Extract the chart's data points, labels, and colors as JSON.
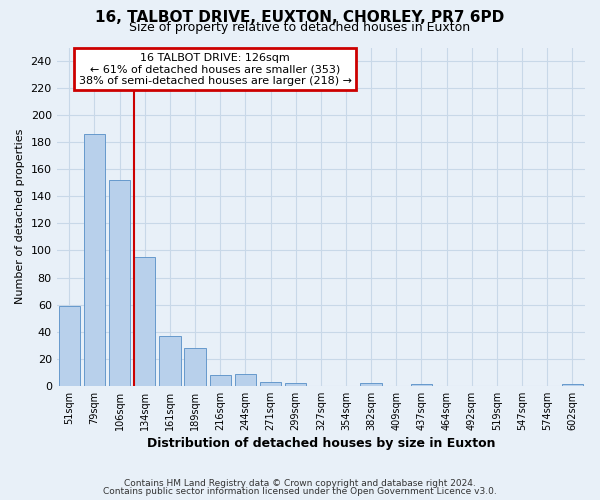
{
  "title_line1": "16, TALBOT DRIVE, EUXTON, CHORLEY, PR7 6PD",
  "title_line2": "Size of property relative to detached houses in Euxton",
  "xlabel": "Distribution of detached houses by size in Euxton",
  "ylabel": "Number of detached properties",
  "categories": [
    "51sqm",
    "79sqm",
    "106sqm",
    "134sqm",
    "161sqm",
    "189sqm",
    "216sqm",
    "244sqm",
    "271sqm",
    "299sqm",
    "327sqm",
    "354sqm",
    "382sqm",
    "409sqm",
    "437sqm",
    "464sqm",
    "492sqm",
    "519sqm",
    "547sqm",
    "574sqm",
    "602sqm"
  ],
  "values": [
    59,
    186,
    152,
    95,
    37,
    28,
    8,
    9,
    3,
    2,
    0,
    0,
    2,
    0,
    1,
    0,
    0,
    0,
    0,
    0,
    1
  ],
  "bar_color": "#b8d0eb",
  "bar_edge_color": "#6699cc",
  "grid_color": "#c8d8e8",
  "background_color": "#e8f0f8",
  "vertical_line_x": 2.57,
  "annotation_line1": "16 TALBOT DRIVE: 126sqm",
  "annotation_line2": "← 61% of detached houses are smaller (353)",
  "annotation_line3": "38% of semi-detached houses are larger (218) →",
  "annotation_box_color": "#ffffff",
  "annotation_box_edge_color": "#cc0000",
  "vline_color": "#cc0000",
  "ylim": [
    0,
    250
  ],
  "yticks": [
    0,
    20,
    40,
    60,
    80,
    100,
    120,
    140,
    160,
    180,
    200,
    220,
    240
  ],
  "footnote1": "Contains HM Land Registry data © Crown copyright and database right 2024.",
  "footnote2": "Contains public sector information licensed under the Open Government Licence v3.0."
}
